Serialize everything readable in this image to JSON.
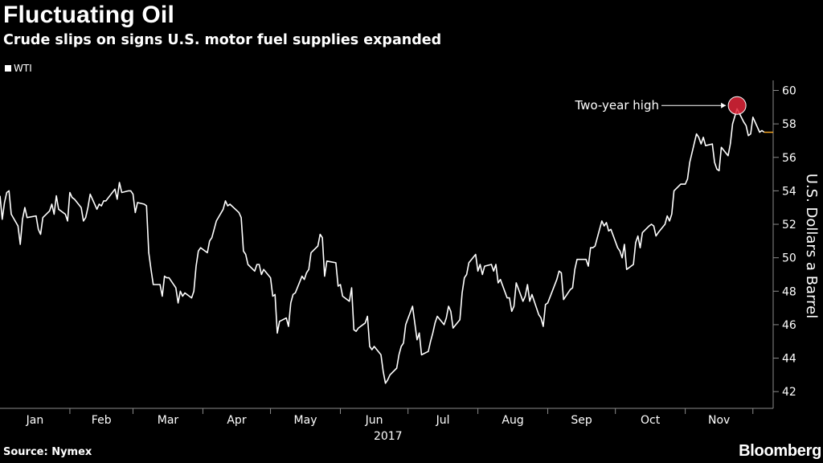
{
  "title": "Fluctuating Oil",
  "subtitle": "Crude slips on signs U.S. motor fuel supplies expanded",
  "source": "Source: Nymex",
  "brand": "Bloomberg",
  "colors": {
    "background": "#000000",
    "line": "#ffffff",
    "highlight": "#e0263a",
    "last_value_marker": "#f5a623"
  },
  "chart_data": {
    "type": "line",
    "title": "Fluctuating Oil",
    "subtitle": "Crude slips on signs U.S. motor fuel supplies expanded",
    "xlabel": "2017",
    "ylabel": "U.S. Dollars a Barrel",
    "x_ticks": [
      "Jan",
      "Feb",
      "Mar",
      "Apr",
      "May",
      "Jun",
      "Jul",
      "Aug",
      "Sep",
      "Oct",
      "Nov"
    ],
    "y_ticks": [
      42,
      44,
      46,
      48,
      50,
      52,
      54,
      56,
      58,
      60
    ],
    "ylim": [
      41.0,
      60.6
    ],
    "xlim": [
      "2017-01-01",
      "2017-12-10"
    ],
    "y_axis_side": "right",
    "grid": false,
    "legend": {
      "placement": "top-left",
      "entries": [
        "WTI"
      ]
    },
    "series": [
      {
        "name": "WTI",
        "dates": [
          "2017-01-01",
          "2017-01-02",
          "2017-01-03",
          "2017-01-04",
          "2017-01-05",
          "2017-01-06",
          "2017-01-09",
          "2017-01-10",
          "2017-01-11",
          "2017-01-12",
          "2017-01-13",
          "2017-01-17",
          "2017-01-18",
          "2017-01-19",
          "2017-01-20",
          "2017-01-23",
          "2017-01-24",
          "2017-01-25",
          "2017-01-26",
          "2017-01-27",
          "2017-01-30",
          "2017-01-31",
          "2017-02-01",
          "2017-02-02",
          "2017-02-03",
          "2017-02-06",
          "2017-02-07",
          "2017-02-08",
          "2017-02-09",
          "2017-02-10",
          "2017-02-13",
          "2017-02-14",
          "2017-02-15",
          "2017-02-16",
          "2017-02-17",
          "2017-02-21",
          "2017-02-22",
          "2017-02-23",
          "2017-02-24",
          "2017-02-27",
          "2017-02-28",
          "2017-03-01",
          "2017-03-02",
          "2017-03-03",
          "2017-03-06",
          "2017-03-07",
          "2017-03-08",
          "2017-03-09",
          "2017-03-10",
          "2017-03-13",
          "2017-03-14",
          "2017-03-15",
          "2017-03-16",
          "2017-03-17",
          "2017-03-20",
          "2017-03-21",
          "2017-03-22",
          "2017-03-23",
          "2017-03-24",
          "2017-03-27",
          "2017-03-28",
          "2017-03-29",
          "2017-03-30",
          "2017-03-31",
          "2017-04-03",
          "2017-04-04",
          "2017-04-05",
          "2017-04-06",
          "2017-04-07",
          "2017-04-10",
          "2017-04-11",
          "2017-04-12",
          "2017-04-13",
          "2017-04-17",
          "2017-04-18",
          "2017-04-19",
          "2017-04-20",
          "2017-04-21",
          "2017-04-24",
          "2017-04-25",
          "2017-04-26",
          "2017-04-27",
          "2017-04-28",
          "2017-05-01",
          "2017-05-02",
          "2017-05-03",
          "2017-05-04",
          "2017-05-05",
          "2017-05-08",
          "2017-05-09",
          "2017-05-10",
          "2017-05-11",
          "2017-05-12",
          "2017-05-15",
          "2017-05-16",
          "2017-05-17",
          "2017-05-18",
          "2017-05-19",
          "2017-05-22",
          "2017-05-23",
          "2017-05-24",
          "2017-05-25",
          "2017-05-26",
          "2017-05-30",
          "2017-05-31",
          "2017-06-01",
          "2017-06-02",
          "2017-06-05",
          "2017-06-06",
          "2017-06-07",
          "2017-06-08",
          "2017-06-09",
          "2017-06-12",
          "2017-06-13",
          "2017-06-14",
          "2017-06-15",
          "2017-06-16",
          "2017-06-19",
          "2017-06-20",
          "2017-06-21",
          "2017-06-22",
          "2017-06-23",
          "2017-06-26",
          "2017-06-27",
          "2017-06-28",
          "2017-06-29",
          "2017-06-30",
          "2017-07-03",
          "2017-07-05",
          "2017-07-06",
          "2017-07-07",
          "2017-07-10",
          "2017-07-11",
          "2017-07-12",
          "2017-07-13",
          "2017-07-14",
          "2017-07-17",
          "2017-07-18",
          "2017-07-19",
          "2017-07-20",
          "2017-07-21",
          "2017-07-24",
          "2017-07-25",
          "2017-07-26",
          "2017-07-27",
          "2017-07-28",
          "2017-07-31",
          "2017-08-01",
          "2017-08-02",
          "2017-08-03",
          "2017-08-04",
          "2017-08-07",
          "2017-08-08",
          "2017-08-09",
          "2017-08-10",
          "2017-08-11",
          "2017-08-14",
          "2017-08-15",
          "2017-08-16",
          "2017-08-17",
          "2017-08-18",
          "2017-08-21",
          "2017-08-22",
          "2017-08-23",
          "2017-08-24",
          "2017-08-25",
          "2017-08-28",
          "2017-08-29",
          "2017-08-30",
          "2017-08-31",
          "2017-09-01",
          "2017-09-05",
          "2017-09-06",
          "2017-09-07",
          "2017-09-08",
          "2017-09-11",
          "2017-09-12",
          "2017-09-13",
          "2017-09-14",
          "2017-09-15",
          "2017-09-18",
          "2017-09-19",
          "2017-09-20",
          "2017-09-21",
          "2017-09-22",
          "2017-09-25",
          "2017-09-26",
          "2017-09-27",
          "2017-09-28",
          "2017-09-29",
          "2017-10-02",
          "2017-10-03",
          "2017-10-04",
          "2017-10-05",
          "2017-10-06",
          "2017-10-09",
          "2017-10-10",
          "2017-10-11",
          "2017-10-12",
          "2017-10-13",
          "2017-10-16",
          "2017-10-17",
          "2017-10-18",
          "2017-10-19",
          "2017-10-20",
          "2017-10-23",
          "2017-10-24",
          "2017-10-25",
          "2017-10-26",
          "2017-10-27",
          "2017-10-30",
          "2017-10-31",
          "2017-11-01",
          "2017-11-02",
          "2017-11-03",
          "2017-11-06",
          "2017-11-07",
          "2017-11-08",
          "2017-11-09",
          "2017-11-10",
          "2017-11-13",
          "2017-11-14",
          "2017-11-15",
          "2017-11-16",
          "2017-11-17",
          "2017-11-20",
          "2017-11-21",
          "2017-11-22",
          "2017-11-24",
          "2017-11-27",
          "2017-11-28",
          "2017-11-29",
          "2017-11-30",
          "2017-12-01",
          "2017-12-04",
          "2017-12-05",
          "2017-12-06"
        ],
        "values": [
          53.7,
          52.3,
          53.3,
          53.9,
          54.0,
          52.6,
          51.9,
          50.8,
          52.3,
          53.0,
          52.4,
          52.5,
          51.7,
          51.4,
          52.4,
          52.8,
          53.2,
          52.6,
          53.7,
          52.9,
          52.6,
          52.2,
          53.9,
          53.6,
          53.5,
          53.0,
          52.2,
          52.4,
          53.0,
          53.8,
          52.9,
          53.2,
          53.1,
          53.4,
          53.4,
          54.1,
          53.5,
          54.5,
          53.9,
          54.0,
          54.0,
          53.8,
          52.7,
          53.3,
          53.2,
          53.1,
          50.3,
          49.3,
          48.4,
          48.4,
          47.7,
          48.9,
          48.8,
          48.8,
          48.2,
          47.3,
          48.0,
          47.7,
          47.9,
          47.6,
          48.0,
          49.5,
          50.4,
          50.6,
          50.3,
          51.0,
          51.2,
          51.7,
          52.2,
          52.9,
          53.4,
          53.1,
          53.2,
          52.7,
          52.4,
          50.4,
          50.2,
          49.6,
          49.2,
          49.6,
          49.6,
          49.0,
          49.3,
          48.8,
          47.7,
          47.8,
          45.5,
          46.2,
          46.4,
          45.9,
          47.3,
          47.8,
          47.9,
          48.9,
          48.7,
          49.1,
          49.3,
          50.3,
          50.7,
          51.4,
          51.2,
          48.9,
          49.8,
          49.7,
          48.3,
          48.4,
          47.7,
          47.4,
          48.2,
          45.7,
          45.6,
          45.8,
          46.1,
          46.5,
          44.7,
          44.5,
          44.7,
          44.2,
          43.2,
          42.5,
          42.7,
          43.0,
          43.4,
          44.2,
          44.7,
          44.9,
          46.0,
          47.1,
          45.1,
          45.5,
          44.2,
          44.4,
          45.0,
          45.5,
          46.1,
          46.5,
          46.0,
          46.4,
          47.1,
          46.8,
          45.8,
          46.3,
          47.9,
          48.8,
          49.0,
          49.7,
          50.2,
          49.2,
          49.6,
          49.0,
          49.5,
          49.6,
          49.2,
          49.6,
          48.5,
          48.7,
          47.6,
          47.6,
          46.8,
          47.1,
          48.5,
          47.4,
          47.7,
          48.4,
          47.4,
          47.8,
          46.6,
          46.4,
          45.9,
          47.2,
          47.3,
          48.7,
          49.2,
          49.1,
          47.5,
          48.1,
          48.2,
          49.3,
          49.9,
          49.9,
          49.9,
          49.5,
          50.6,
          50.6,
          50.7,
          52.2,
          51.9,
          52.1,
          51.6,
          51.7,
          50.6,
          50.4,
          50.0,
          50.8,
          49.3,
          49.6,
          50.9,
          51.3,
          50.6,
          51.5,
          51.9,
          52.0,
          51.9,
          51.3,
          51.5,
          52.0,
          52.5,
          52.2,
          52.6,
          54.0,
          54.4,
          54.4,
          54.4,
          54.7,
          55.7,
          57.4,
          57.2,
          56.8,
          57.2,
          56.7,
          56.8,
          55.7,
          55.3,
          55.2,
          56.6,
          56.1,
          56.8,
          58.0,
          58.9,
          58.1,
          57.9,
          57.3,
          57.4,
          58.4,
          57.5,
          57.6,
          57.5
        ],
        "last_value": 57.5
      }
    ],
    "annotations": [
      {
        "text": "Two-year high",
        "date": "2017-11-24",
        "value": 59.1
      }
    ]
  }
}
